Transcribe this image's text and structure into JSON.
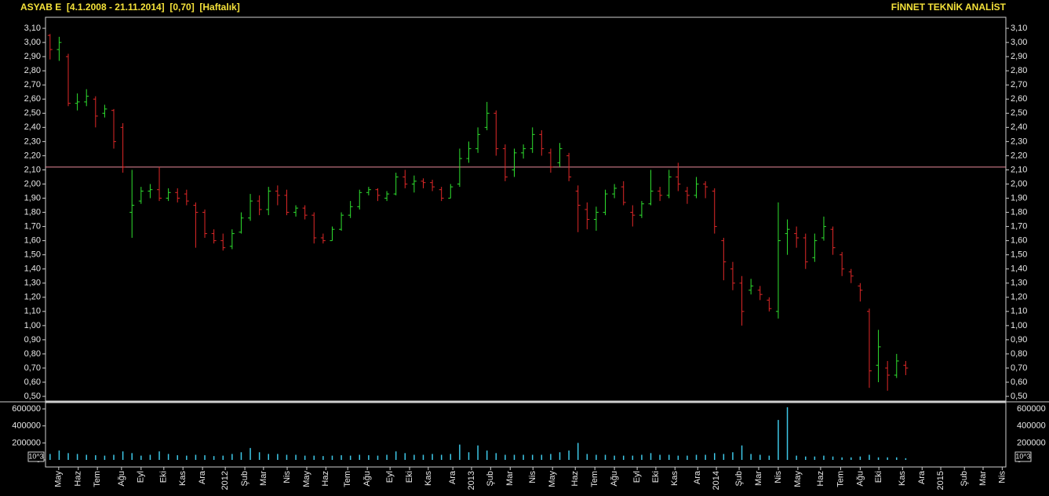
{
  "header": {
    "left": "ASYAB E  [4.1.2008 - 21.11.2014]  [0,70]  [Haftalık]",
    "right": "FİNNET TEKNİK ANALİST"
  },
  "chart_data": [
    {
      "type": "ohlc",
      "x": [
        1,
        3,
        5,
        7,
        9,
        11,
        13,
        15,
        17,
        19,
        21,
        23,
        25,
        27,
        29,
        31,
        33,
        35,
        37,
        39,
        41,
        43,
        45,
        47,
        49,
        51,
        53,
        55,
        57,
        59,
        61,
        63,
        65,
        67,
        69,
        71,
        73,
        75,
        77,
        79,
        81,
        83,
        85,
        87,
        89,
        91,
        93,
        95,
        97,
        99,
        101,
        103,
        105,
        107,
        109,
        111,
        113,
        115,
        117,
        119,
        121,
        123,
        125,
        127,
        129,
        131,
        133,
        135,
        137,
        139,
        141,
        143,
        145,
        147,
        149,
        151,
        153,
        155,
        157,
        159,
        161,
        163,
        165,
        167,
        169,
        171,
        173,
        175,
        177,
        179,
        181,
        183,
        185,
        187,
        189
      ],
      "open": [
        3.05,
        2.95,
        2.9,
        2.57,
        2.58,
        2.6,
        2.5,
        2.52,
        2.4,
        1.8,
        1.88,
        1.95,
        1.96,
        1.9,
        1.94,
        1.93,
        1.85,
        1.8,
        1.65,
        1.6,
        1.56,
        1.66,
        1.76,
        1.88,
        1.82,
        1.95,
        1.92,
        1.8,
        1.83,
        1.78,
        1.62,
        1.6,
        1.68,
        1.78,
        1.84,
        1.94,
        1.96,
        1.9,
        1.93,
        2.05,
        2.0,
        2.02,
        2.01,
        1.96,
        1.9,
        2.0,
        2.18,
        2.25,
        2.4,
        2.5,
        2.25,
        2.1,
        2.22,
        2.25,
        2.35,
        2.22,
        2.15,
        2.2,
        1.95,
        1.82,
        1.75,
        1.8,
        1.93,
        1.98,
        1.8,
        1.78,
        1.86,
        1.95,
        1.92,
        2.05,
        1.95,
        1.92,
        2.0,
        1.95,
        1.6,
        1.4,
        1.3,
        1.25,
        1.25,
        1.18,
        1.1,
        1.65,
        1.65,
        1.62,
        1.48,
        1.62,
        1.68,
        1.5,
        1.38,
        1.28,
        1.1,
        0.72,
        0.7,
        0.65,
        0.72
      ],
      "high": [
        3.06,
        3.04,
        2.92,
        2.64,
        2.67,
        2.62,
        2.56,
        2.53,
        2.43,
        2.1,
        1.98,
        2.0,
        2.12,
        1.97,
        1.97,
        1.96,
        1.87,
        1.82,
        1.68,
        1.65,
        1.68,
        1.8,
        1.93,
        1.92,
        1.98,
        1.99,
        1.96,
        1.85,
        1.85,
        1.8,
        1.65,
        1.7,
        1.8,
        1.88,
        1.96,
        1.98,
        1.97,
        1.95,
        2.08,
        2.1,
        2.06,
        2.04,
        2.03,
        1.98,
        2.0,
        2.25,
        2.3,
        2.4,
        2.58,
        2.52,
        2.28,
        2.25,
        2.28,
        2.4,
        2.38,
        2.25,
        2.29,
        2.22,
        1.99,
        1.87,
        1.84,
        1.96,
        2.0,
        2.02,
        1.85,
        1.88,
        2.1,
        1.98,
        2.1,
        2.15,
        1.98,
        2.05,
        2.02,
        1.97,
        1.62,
        1.45,
        1.35,
        1.33,
        1.28,
        1.2,
        1.87,
        1.75,
        1.7,
        1.65,
        1.65,
        1.77,
        1.7,
        1.52,
        1.4,
        1.3,
        1.12,
        0.97,
        0.75,
        0.8,
        0.75
      ],
      "low": [
        2.88,
        2.87,
        2.55,
        2.52,
        2.55,
        2.4,
        2.47,
        2.25,
        2.08,
        1.62,
        1.86,
        1.9,
        1.88,
        1.88,
        1.87,
        1.85,
        1.55,
        1.62,
        1.58,
        1.53,
        1.54,
        1.65,
        1.74,
        1.78,
        1.78,
        1.85,
        1.78,
        1.77,
        1.75,
        1.58,
        1.58,
        1.6,
        1.67,
        1.76,
        1.82,
        1.92,
        1.88,
        1.88,
        1.92,
        1.97,
        1.94,
        1.97,
        1.95,
        1.88,
        1.9,
        1.98,
        2.15,
        2.22,
        2.38,
        2.2,
        2.02,
        2.05,
        2.18,
        2.22,
        2.2,
        2.08,
        2.12,
        2.02,
        1.66,
        1.68,
        1.67,
        1.78,
        1.9,
        1.85,
        1.7,
        1.76,
        1.85,
        1.88,
        1.9,
        1.95,
        1.86,
        1.9,
        1.9,
        1.65,
        1.32,
        1.25,
        1.0,
        1.22,
        1.18,
        1.1,
        1.05,
        1.5,
        1.55,
        1.4,
        1.45,
        1.6,
        1.5,
        1.35,
        1.3,
        1.17,
        0.56,
        0.6,
        0.54,
        0.63,
        0.65
      ],
      "close": [
        2.95,
        3.0,
        2.57,
        2.58,
        2.62,
        2.48,
        2.53,
        2.3,
        2.12,
        1.85,
        1.95,
        1.96,
        1.9,
        1.94,
        1.9,
        1.88,
        1.8,
        1.65,
        1.6,
        1.55,
        1.65,
        1.76,
        1.88,
        1.82,
        1.95,
        1.92,
        1.8,
        1.83,
        1.78,
        1.62,
        1.6,
        1.68,
        1.78,
        1.84,
        1.94,
        1.96,
        1.92,
        1.93,
        2.05,
        2.0,
        2.02,
        2.01,
        1.98,
        1.9,
        1.98,
        2.18,
        2.25,
        2.35,
        2.5,
        2.25,
        2.05,
        2.22,
        2.25,
        2.35,
        2.25,
        2.12,
        2.25,
        2.05,
        1.85,
        1.75,
        1.8,
        1.93,
        1.97,
        1.87,
        1.78,
        1.86,
        1.95,
        1.92,
        2.05,
        2.0,
        1.92,
        2.0,
        1.98,
        1.7,
        1.45,
        1.3,
        1.1,
        1.28,
        1.22,
        1.12,
        1.6,
        1.68,
        1.62,
        1.45,
        1.6,
        1.7,
        1.55,
        1.4,
        1.35,
        1.25,
        0.68,
        0.85,
        0.65,
        0.75,
        0.7
      ],
      "up_color": "#2fe02f",
      "down_color": "#e02828",
      "reference_line": 2.12,
      "reference_color": "#e88a9a",
      "xlim": [
        0,
        211
      ],
      "ylim": [
        0.467,
        3.178
      ],
      "yticks": [
        {
          "value": 0.5,
          "label": "0,50"
        },
        {
          "value": 0.6,
          "label": "0,60"
        },
        {
          "value": 0.7,
          "label": "0,70"
        },
        {
          "value": 0.8,
          "label": "0,80"
        },
        {
          "value": 0.9,
          "label": "0,90"
        },
        {
          "value": 1.0,
          "label": "1,00"
        },
        {
          "value": 1.1,
          "label": "1,10"
        },
        {
          "value": 1.2,
          "label": "1,20"
        },
        {
          "value": 1.3,
          "label": "1,30"
        },
        {
          "value": 1.4,
          "label": "1,40"
        },
        {
          "value": 1.5,
          "label": "1,50"
        },
        {
          "value": 1.6,
          "label": "1,60"
        },
        {
          "value": 1.7,
          "label": "1,70"
        },
        {
          "value": 1.8,
          "label": "1,80"
        },
        {
          "value": 1.9,
          "label": "1,90"
        },
        {
          "value": 2.0,
          "label": "2,00"
        },
        {
          "value": 2.1,
          "label": "2,10"
        },
        {
          "value": 2.2,
          "label": "2,20"
        },
        {
          "value": 2.3,
          "label": "2,30"
        },
        {
          "value": 2.4,
          "label": "2,40"
        },
        {
          "value": 2.5,
          "label": "2,50"
        },
        {
          "value": 2.6,
          "label": "2,60"
        },
        {
          "value": 2.7,
          "label": "2,70"
        },
        {
          "value": 2.8,
          "label": "2,80"
        },
        {
          "value": 2.9,
          "label": "2,90"
        },
        {
          "value": 3.0,
          "label": "3,00"
        },
        {
          "value": 3.1,
          "label": "3,10"
        }
      ]
    },
    {
      "type": "bar",
      "x": [
        1,
        3,
        5,
        7,
        9,
        11,
        13,
        15,
        17,
        19,
        21,
        23,
        25,
        27,
        29,
        31,
        33,
        35,
        37,
        39,
        41,
        43,
        45,
        47,
        49,
        51,
        53,
        55,
        57,
        59,
        61,
        63,
        65,
        67,
        69,
        71,
        73,
        75,
        77,
        79,
        81,
        83,
        85,
        87,
        89,
        91,
        93,
        95,
        97,
        99,
        101,
        103,
        105,
        107,
        109,
        111,
        113,
        115,
        117,
        119,
        121,
        123,
        125,
        127,
        129,
        131,
        133,
        135,
        137,
        139,
        141,
        143,
        145,
        147,
        149,
        151,
        153,
        155,
        157,
        159,
        161,
        163,
        165,
        167,
        169,
        171,
        173,
        175,
        177,
        179,
        181,
        183,
        185,
        187,
        189
      ],
      "values": [
        70000,
        110000,
        80000,
        70000,
        60000,
        55000,
        50000,
        60000,
        100000,
        80000,
        50000,
        60000,
        100000,
        70000,
        55000,
        50000,
        60000,
        55000,
        45000,
        50000,
        70000,
        90000,
        140000,
        90000,
        70000,
        70000,
        60000,
        60000,
        50000,
        50000,
        45000,
        50000,
        55000,
        50000,
        60000,
        55000,
        50000,
        60000,
        100000,
        80000,
        60000,
        60000,
        70000,
        60000,
        70000,
        180000,
        90000,
        170000,
        110000,
        80000,
        60000,
        60000,
        60000,
        60000,
        60000,
        70000,
        90000,
        110000,
        200000,
        70000,
        60000,
        60000,
        50000,
        50000,
        50000,
        60000,
        80000,
        60000,
        60000,
        50000,
        50000,
        60000,
        60000,
        80000,
        70000,
        90000,
        170000,
        70000,
        60000,
        50000,
        470000,
        620000,
        50000,
        40000,
        40000,
        50000,
        40000,
        30000,
        30000,
        40000,
        60000,
        30000,
        30000,
        30000,
        20000
      ],
      "color": "#3ec8e8",
      "unit_label": "10^3",
      "xlim": [
        0,
        211
      ],
      "ylim": [
        -83000,
        674000
      ],
      "yticks": [
        0,
        200000,
        400000,
        600000
      ],
      "xticks": [
        {
          "value": 2.9,
          "label": "May"
        },
        {
          "value": 7.2,
          "label": "Haz"
        },
        {
          "value": 11.4,
          "label": "Tem"
        },
        {
          "value": 16.7,
          "label": "Ağu"
        },
        {
          "value": 21,
          "label": "Eyl"
        },
        {
          "value": 26,
          "label": "Eki"
        },
        {
          "value": 30.2,
          "label": "Kas"
        },
        {
          "value": 34.5,
          "label": "Ara"
        },
        {
          "value": 39.5,
          "label": "2012"
        },
        {
          "value": 43.8,
          "label": "Şub"
        },
        {
          "value": 47.9,
          "label": "Mar"
        },
        {
          "value": 53.1,
          "label": "Nis"
        },
        {
          "value": 57.4,
          "label": "May"
        },
        {
          "value": 61.6,
          "label": "Haz"
        },
        {
          "value": 66.4,
          "label": "Tem"
        },
        {
          "value": 70.7,
          "label": "Ağu"
        },
        {
          "value": 75.7,
          "label": "Eyl"
        },
        {
          "value": 80,
          "label": "Eki"
        },
        {
          "value": 84.1,
          "label": "Kas"
        },
        {
          "value": 89.5,
          "label": "Ara"
        },
        {
          "value": 93.6,
          "label": "2013"
        },
        {
          "value": 97.8,
          "label": "Şub"
        },
        {
          "value": 102.1,
          "label": "Mar"
        },
        {
          "value": 107.1,
          "label": "Nis"
        },
        {
          "value": 111.4,
          "label": "May"
        },
        {
          "value": 116.4,
          "label": "Haz"
        },
        {
          "value": 120.7,
          "label": "Tem"
        },
        {
          "value": 125,
          "label": "Ağu"
        },
        {
          "value": 130,
          "label": "Eyl"
        },
        {
          "value": 134.1,
          "label": "Eki"
        },
        {
          "value": 138.3,
          "label": "Kas"
        },
        {
          "value": 143.3,
          "label": "Ara"
        },
        {
          "value": 147.4,
          "label": "2014"
        },
        {
          "value": 152.4,
          "label": "Şub"
        },
        {
          "value": 156.7,
          "label": "Mar"
        },
        {
          "value": 161,
          "label": "Nis"
        },
        {
          "value": 165.3,
          "label": "May"
        },
        {
          "value": 170.3,
          "label": "Haz"
        },
        {
          "value": 174.7,
          "label": "Tem"
        },
        {
          "value": 179,
          "label": "Ağu"
        },
        {
          "value": 183.1,
          "label": "Eki"
        },
        {
          "value": 188.3,
          "label": "Kas"
        },
        {
          "value": 192.6,
          "label": "Ara"
        },
        {
          "value": 196.7,
          "label": "2015"
        },
        {
          "value": 201.9,
          "label": "Şub"
        },
        {
          "value": 206,
          "label": "Mar"
        },
        {
          "value": 210.2,
          "label": "Nis"
        }
      ]
    }
  ]
}
